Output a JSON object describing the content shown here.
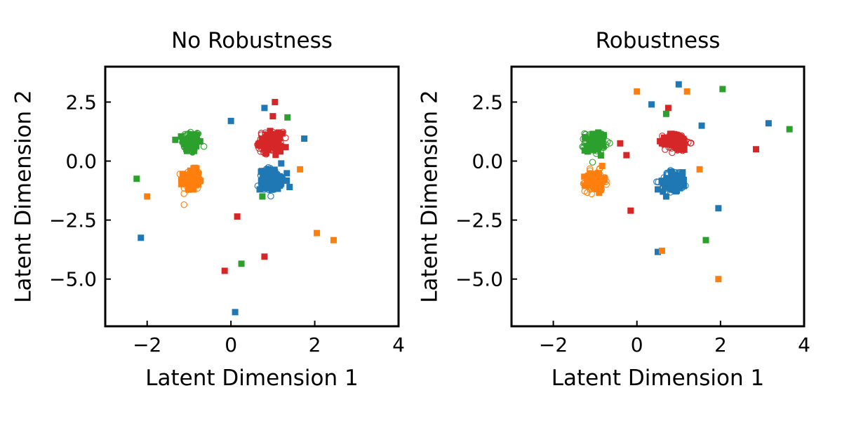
{
  "chart_data": [
    {
      "type": "scatter",
      "title": "No Robustness",
      "xlabel": "Latent Dimension 1",
      "ylabel": "Latent Dimension 2",
      "xlim": [
        -3,
        4
      ],
      "ylim": [
        -7,
        4
      ],
      "xticks": [
        -2,
        0,
        2,
        4
      ],
      "xtick_labels": [
        "−2",
        "0",
        "2",
        "4"
      ],
      "yticks": [
        2.5,
        0.0,
        -2.5,
        -5.0
      ],
      "ytick_labels": [
        "2.5",
        "0.0",
        "−2.5",
        "−5.0"
      ],
      "grid": false,
      "legend": "none",
      "clusters": [
        {
          "color": "#2ca02c",
          "center": [
            -0.95,
            0.8
          ],
          "spread": [
            0.11,
            0.25
          ]
        },
        {
          "color": "#ff7f0e",
          "center": [
            -0.95,
            -0.8
          ],
          "spread": [
            0.11,
            0.25
          ]
        },
        {
          "color": "#d62728",
          "center": [
            0.95,
            0.8
          ],
          "spread": [
            0.15,
            0.22
          ]
        },
        {
          "color": "#1f77b4",
          "center": [
            0.95,
            -0.8
          ],
          "spread": [
            0.15,
            0.25
          ]
        }
      ],
      "series": [
        {
          "color": "#1f77b4",
          "points": [
            [
              0.8,
              2.25
            ],
            [
              0.0,
              1.7
            ],
            [
              1.75,
              0.95
            ],
            [
              1.2,
              -0.1
            ],
            [
              -2.15,
              -3.25
            ],
            [
              0.1,
              -6.4
            ],
            [
              1.4,
              -1.1
            ]
          ]
        },
        {
          "color": "#d62728",
          "points": [
            [
              1.05,
              2.5
            ],
            [
              1.0,
              1.9
            ],
            [
              0.15,
              -2.35
            ],
            [
              -0.15,
              -4.65
            ],
            [
              0.8,
              -4.05
            ]
          ]
        },
        {
          "color": "#2ca02c",
          "points": [
            [
              1.35,
              1.85
            ],
            [
              -2.25,
              -0.75
            ],
            [
              0.25,
              -4.35
            ],
            [
              0.75,
              -1.5
            ]
          ]
        },
        {
          "color": "#ff7f0e",
          "points": [
            [
              -2.0,
              -1.5
            ],
            [
              1.65,
              -0.35
            ],
            [
              2.05,
              -3.05
            ],
            [
              2.45,
              -3.35
            ]
          ]
        }
      ]
    },
    {
      "type": "scatter",
      "title": "Robustness",
      "xlabel": "Latent Dimension 1",
      "ylabel": "Latent Dimension 2",
      "xlim": [
        -3,
        4
      ],
      "ylim": [
        -7,
        4
      ],
      "xticks": [
        -2,
        0,
        2,
        4
      ],
      "xtick_labels": [
        "−2",
        "0",
        "2",
        "4"
      ],
      "yticks": [
        2.5,
        0.0,
        -2.5,
        -5.0
      ],
      "ytick_labels": [
        "2.5",
        "0.0",
        "−2.5",
        "−5.0"
      ],
      "grid": false,
      "legend": "none",
      "clusters": [
        {
          "color": "#2ca02c",
          "center": [
            -1.0,
            0.8
          ],
          "spread": [
            0.12,
            0.22
          ]
        },
        {
          "color": "#ff7f0e",
          "center": [
            -1.0,
            -0.85
          ],
          "spread": [
            0.12,
            0.22
          ]
        },
        {
          "color": "#d62728",
          "center": [
            0.95,
            0.8
          ],
          "spread": [
            0.15,
            0.2
          ]
        },
        {
          "color": "#1f77b4",
          "center": [
            0.9,
            -0.85
          ],
          "spread": [
            0.16,
            0.22
          ]
        }
      ],
      "series": [
        {
          "color": "#1f77b4",
          "points": [
            [
              1.0,
              3.25
            ],
            [
              0.35,
              2.4
            ],
            [
              1.55,
              1.5
            ],
            [
              3.15,
              1.6
            ],
            [
              0.5,
              -1.2
            ],
            [
              0.7,
              -1.5
            ],
            [
              1.95,
              -2.0
            ],
            [
              0.5,
              -3.85
            ]
          ]
        },
        {
          "color": "#d62728",
          "points": [
            [
              0.75,
              2.25
            ],
            [
              -0.4,
              0.75
            ],
            [
              -0.25,
              0.25
            ],
            [
              -0.15,
              -2.1
            ],
            [
              2.85,
              0.5
            ]
          ]
        },
        {
          "color": "#2ca02c",
          "points": [
            [
              2.05,
              3.05
            ],
            [
              0.7,
              2.0
            ],
            [
              3.65,
              1.35
            ],
            [
              1.65,
              -3.35
            ],
            [
              -1.25,
              0.45
            ]
          ]
        },
        {
          "color": "#ff7f0e",
          "points": [
            [
              0.0,
              2.95
            ],
            [
              1.2,
              2.95
            ],
            [
              1.5,
              -0.35
            ],
            [
              0.6,
              -3.8
            ],
            [
              1.95,
              -5.0
            ]
          ]
        }
      ]
    }
  ]
}
